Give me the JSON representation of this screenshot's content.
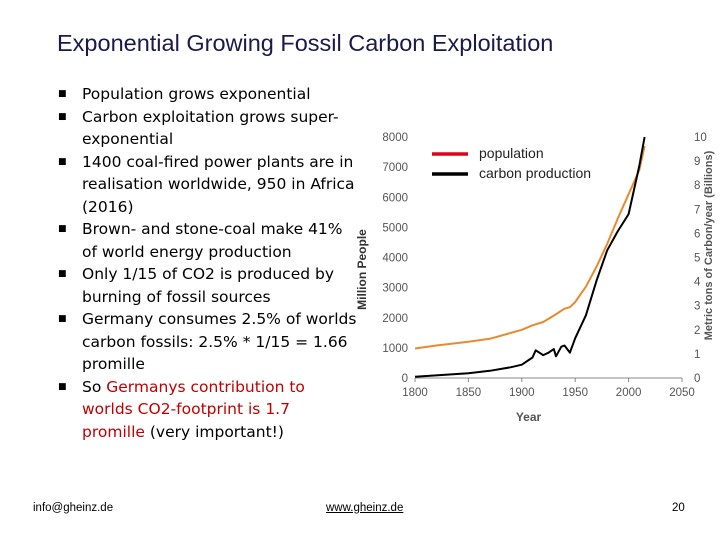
{
  "slide": {
    "title": "Exponential Growing Fossil Carbon Exploitation",
    "bullets": [
      {
        "text": "Population grows exponential"
      },
      {
        "text": "Carbon exploitation grows super-exponential"
      },
      {
        "text": "1400 coal-fired power plants are in realisation worldwide, 950 in Africa (2016)"
      },
      {
        "text": "Brown- and stone-coal make 41% of world energy production"
      },
      {
        "text": "Only 1/15 of CO2 is produced by burning of fossil sources"
      },
      {
        "text": "Germany consumes 2.5% of worlds carbon fossils: 2.5% * 1/15 = 1.66 promille"
      },
      {
        "pre": "So ",
        "highlight": "Germanys contribution to worlds CO2-footprint is 1.7 promille",
        "post": " (very important!)"
      }
    ],
    "footer": {
      "email": "info@gheinz.de",
      "website": "www.gheinz.de",
      "page": "20"
    }
  },
  "chart_data": {
    "type": "line",
    "title": "",
    "xlabel": "Year",
    "ylabel_left": "Million People",
    "ylabel_right": "Metric tons of Carbon/year (Billions)",
    "xlim": [
      1800,
      2050
    ],
    "ylim_left": [
      0,
      8000
    ],
    "ylim_right": [
      0,
      10
    ],
    "x_ticks": [
      "1800",
      "1850",
      "1900",
      "1950",
      "2000",
      "2050"
    ],
    "y_left_ticks": [
      "0",
      "1000",
      "2000",
      "3000",
      "4000",
      "5000",
      "6000",
      "7000",
      "8000"
    ],
    "y_right_ticks": [
      "0",
      "1",
      "2",
      "3",
      "4",
      "5",
      "6",
      "7",
      "8",
      "9",
      "10"
    ],
    "legend": [
      "population",
      "carbon production"
    ],
    "series": [
      {
        "name": "population",
        "axis": "left",
        "color": "#e88a2e",
        "x": [
          1800,
          1820,
          1850,
          1870,
          1900,
          1910,
          1920,
          1930,
          1940,
          1945,
          1950,
          1955,
          1960,
          1970,
          1980,
          1990,
          2000,
          2010,
          2015
        ],
        "y": [
          980,
          1080,
          1200,
          1300,
          1600,
          1750,
          1860,
          2070,
          2300,
          2350,
          2520,
          2780,
          3030,
          3700,
          4450,
          5300,
          6100,
          6900,
          7700
        ]
      },
      {
        "name": "carbon production",
        "axis": "right",
        "color": "#000000",
        "x": [
          1800,
          1850,
          1870,
          1890,
          1900,
          1910,
          1913,
          1920,
          1925,
          1930,
          1932,
          1937,
          1940,
          1945,
          1950,
          1960,
          1970,
          1980,
          1990,
          2000,
          2010,
          2015
        ],
        "y": [
          0.05,
          0.2,
          0.3,
          0.45,
          0.55,
          0.85,
          1.15,
          0.95,
          1.05,
          1.2,
          0.9,
          1.3,
          1.35,
          1.05,
          1.65,
          2.6,
          4.05,
          5.3,
          6.1,
          6.8,
          8.8,
          10.0
        ]
      }
    ]
  }
}
